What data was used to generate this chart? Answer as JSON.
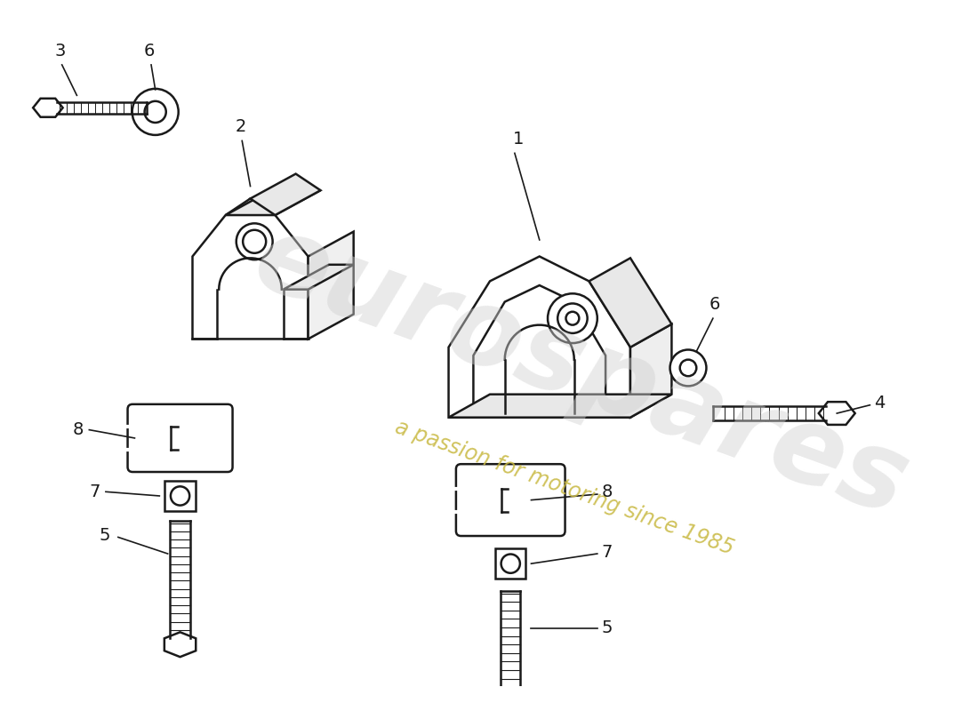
{
  "background_color": "#ffffff",
  "line_color": "#1a1a1a",
  "watermark_text1": "eurospares",
  "watermark_text2": "a passion for motoring since 1985",
  "watermark_color1": "#d0d0d0",
  "watermark_color2": "#c8b840",
  "fig_w": 11.0,
  "fig_h": 8.0
}
